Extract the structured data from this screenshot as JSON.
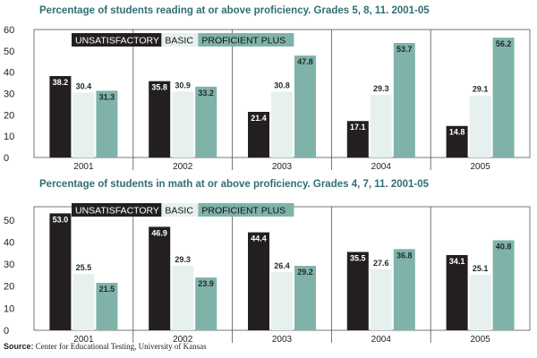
{
  "chart_data": [
    {
      "type": "bar",
      "title": "Percentage of students reading at or above proficiency. Grades 5, 8, 11. 2001-05",
      "categories": [
        "2001",
        "2002",
        "2003",
        "2004",
        "2005"
      ],
      "series": [
        {
          "name": "UNSATISFACTORY",
          "values": [
            38.2,
            35.8,
            21.4,
            17.1,
            14.8
          ],
          "color": "#231f20"
        },
        {
          "name": "BASIC",
          "values": [
            30.4,
            30.9,
            30.8,
            29.3,
            29.1
          ],
          "color": "#e6f1ef"
        },
        {
          "name": "PROFICIENT PLUS",
          "values": [
            31.3,
            33.2,
            47.8,
            53.7,
            56.2
          ],
          "color": "#7fb3aa"
        }
      ],
      "yticks": [
        0,
        10,
        20,
        30,
        40,
        50,
        60
      ],
      "ylim": [
        0,
        60
      ],
      "grid": false,
      "legend": "top-left"
    },
    {
      "type": "bar",
      "title": "Percentage of students in math at or above proficiency. Grades 4, 7, 11. 2001-05",
      "categories": [
        "2001",
        "2002",
        "2003",
        "2004",
        "2005"
      ],
      "series": [
        {
          "name": "UNSATISFACTORY",
          "values": [
            53.0,
            46.9,
            44.4,
            35.5,
            34.1
          ],
          "color": "#231f20"
        },
        {
          "name": "BASIC",
          "values": [
            25.5,
            29.3,
            26.4,
            27.6,
            25.1
          ],
          "color": "#e6f1ef"
        },
        {
          "name": "PROFICIENT PLUS",
          "values": [
            21.5,
            23.9,
            29.2,
            36.8,
            40.8
          ],
          "color": "#7fb3aa"
        }
      ],
      "yticks": [
        0,
        10,
        20,
        30,
        40,
        50
      ],
      "ylim": [
        0,
        56
      ],
      "grid": false,
      "legend": "top-left"
    }
  ],
  "source": {
    "label": "Source:",
    "text": " Center for Educational Testing, University of Kansas"
  }
}
